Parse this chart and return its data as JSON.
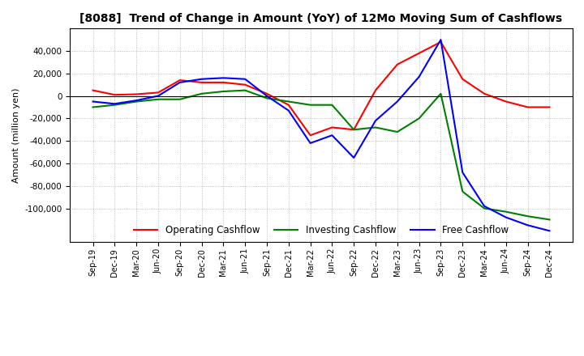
{
  "title": "[8088]  Trend of Change in Amount (YoY) of 12Mo Moving Sum of Cashflows",
  "ylabel": "Amount (million yen)",
  "x_labels": [
    "Sep-19",
    "Dec-19",
    "Mar-20",
    "Jun-20",
    "Sep-20",
    "Dec-20",
    "Mar-21",
    "Jun-21",
    "Sep-21",
    "Dec-21",
    "Mar-22",
    "Jun-22",
    "Sep-22",
    "Dec-22",
    "Mar-23",
    "Jun-23",
    "Sep-23",
    "Dec-23",
    "Mar-24",
    "Jun-24",
    "Sep-24",
    "Dec-24"
  ],
  "operating": [
    5000,
    1000,
    1500,
    3000,
    14000,
    12000,
    12000,
    10000,
    2000,
    -8000,
    -35000,
    -28000,
    -30000,
    5000,
    28000,
    38000,
    48000,
    15000,
    2000,
    -5000,
    -10000,
    -10000
  ],
  "investing": [
    -10000,
    -8000,
    -5000,
    -3000,
    -3000,
    2000,
    4000,
    5000,
    -2000,
    -5000,
    -8000,
    -8000,
    -30000,
    -28000,
    -32000,
    -20000,
    2000,
    -85000,
    -100000,
    -103000,
    -107000,
    -110000
  ],
  "free": [
    -5000,
    -7000,
    -4000,
    0,
    12000,
    15000,
    16000,
    15000,
    0,
    -13000,
    -42000,
    -35000,
    -55000,
    -22000,
    -5000,
    17000,
    50000,
    -68000,
    -98000,
    -108000,
    -115000,
    -120000
  ],
  "ylim": [
    -130000,
    60000
  ],
  "yticks": [
    -100000,
    -80000,
    -60000,
    -40000,
    -20000,
    0,
    20000,
    40000
  ],
  "operating_color": "#ff0000",
  "investing_color": "#008000",
  "free_color": "#0000ff",
  "bg_color": "#ffffff",
  "grid_color": "#aaaaaa"
}
